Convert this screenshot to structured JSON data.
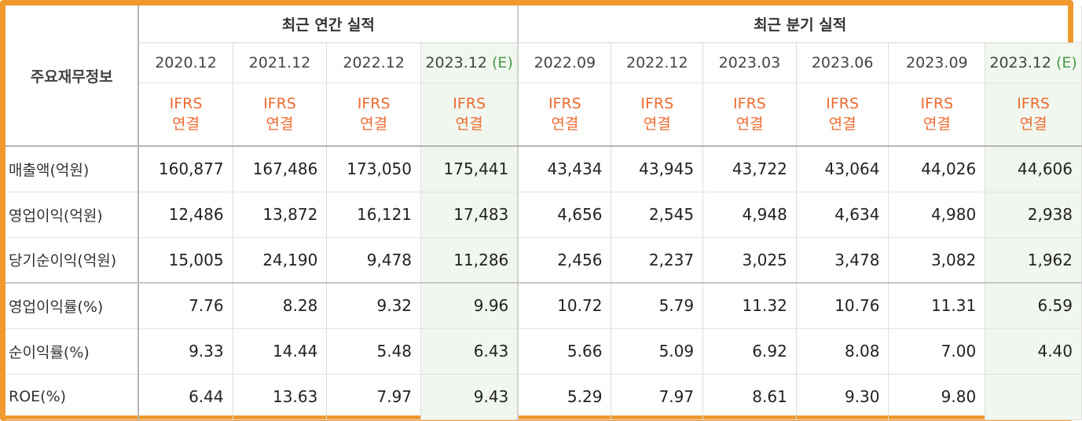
{
  "table": {
    "corner_label": "주요재무정보",
    "groups": {
      "annual": "최근 연간 실적",
      "quarterly": "최근 분기 실적"
    },
    "periods": [
      {
        "label": "2020.12",
        "est": ""
      },
      {
        "label": "2021.12",
        "est": ""
      },
      {
        "label": "2022.12",
        "est": ""
      },
      {
        "label": "2023.12",
        "est": "(E)"
      },
      {
        "label": "2022.09",
        "est": ""
      },
      {
        "label": "2022.12",
        "est": ""
      },
      {
        "label": "2023.03",
        "est": ""
      },
      {
        "label": "2023.06",
        "est": ""
      },
      {
        "label": "2023.09",
        "est": ""
      },
      {
        "label": "2023.12",
        "est": "(E)"
      }
    ],
    "standard": {
      "line1": "IFRS",
      "line2": "연결"
    },
    "rows": [
      {
        "label": "매출액(억원)",
        "values": [
          "160,877",
          "167,486",
          "173,050",
          "175,441",
          "43,434",
          "43,945",
          "43,722",
          "43,064",
          "44,026",
          "44,606"
        ]
      },
      {
        "label": "영업이익(억원)",
        "values": [
          "12,486",
          "13,872",
          "16,121",
          "17,483",
          "4,656",
          "2,545",
          "4,948",
          "4,634",
          "4,980",
          "2,938"
        ]
      },
      {
        "label": "당기순이익(억원)",
        "values": [
          "15,005",
          "24,190",
          "9,478",
          "11,286",
          "2,456",
          "2,237",
          "3,025",
          "3,478",
          "3,082",
          "1,962"
        ]
      },
      {
        "label": "영업이익률(%)",
        "values": [
          "7.76",
          "8.28",
          "9.32",
          "9.96",
          "10.72",
          "5.79",
          "11.32",
          "10.76",
          "11.31",
          "6.59"
        ]
      },
      {
        "label": "순이익률(%)",
        "values": [
          "9.33",
          "14.44",
          "5.48",
          "6.43",
          "5.66",
          "5.09",
          "6.92",
          "8.08",
          "7.00",
          "4.40"
        ]
      },
      {
        "label": "ROE(%)",
        "values": [
          "6.44",
          "13.63",
          "7.97",
          "9.43",
          "5.29",
          "7.97",
          "8.61",
          "9.30",
          "9.80",
          ""
        ]
      }
    ]
  },
  "colors": {
    "frame_border": "#f0992f",
    "estimate_bg": "#f1f7ef",
    "ifrs_text": "#ef6a2f",
    "estimate_tag": "#4a9a49"
  }
}
